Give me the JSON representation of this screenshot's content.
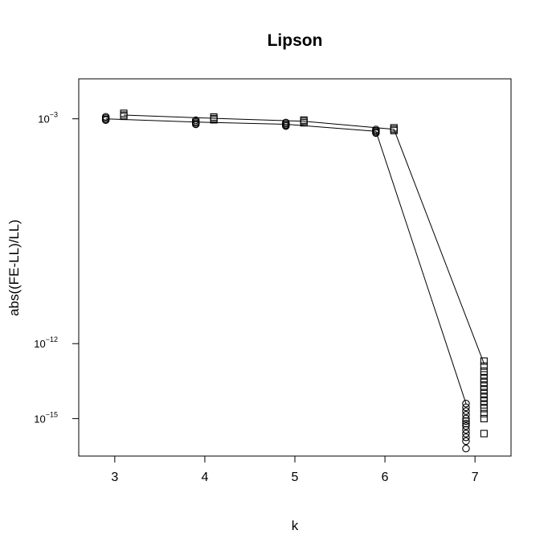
{
  "chart_data": {
    "type": "scatter",
    "title": "Lipson",
    "xlabel": "k",
    "ylabel": "abs((FE-LL)/LL)",
    "x_ticks": [
      "3",
      "4",
      "5",
      "6",
      "7"
    ],
    "y_ticks": [
      {
        "exp": -3,
        "base": "10",
        "sup": "−3"
      },
      {
        "exp": -12,
        "base": "10",
        "sup": "−12"
      },
      {
        "exp": -15,
        "base": "10",
        "sup": "−15"
      }
    ],
    "xlim": [
      2.6,
      7.4
    ],
    "ylim_log10": [
      -16.5,
      -1.4
    ],
    "y_scale": "log10",
    "grid": false,
    "legend": "none",
    "series": [
      {
        "marker": "circle",
        "line_x": [
          2.9,
          3.9,
          4.9,
          5.9,
          6.9
        ],
        "line_log10y": [
          -3.0,
          -3.13,
          -3.22,
          -3.5,
          -14.4
        ],
        "points": [
          {
            "x": 2.9,
            "log10y": [
              -2.92,
              -2.97,
              -3.02,
              -3.05
            ]
          },
          {
            "x": 3.9,
            "log10y": [
              -3.06,
              -3.12,
              -3.17,
              -3.22
            ]
          },
          {
            "x": 4.9,
            "log10y": [
              -3.15,
              -3.2,
              -3.25,
              -3.29
            ]
          },
          {
            "x": 5.9,
            "log10y": [
              -3.43,
              -3.48,
              -3.53,
              -3.57
            ]
          },
          {
            "x": 6.9,
            "log10y": [
              -14.4,
              -14.55,
              -14.7,
              -14.85,
              -15.0,
              -15.1,
              -15.2,
              -15.3,
              -15.45,
              -15.6,
              -15.75,
              -15.9,
              -16.2
            ]
          }
        ]
      },
      {
        "marker": "square",
        "line_x": [
          3.1,
          4.1,
          5.1,
          6.1,
          7.1
        ],
        "line_log10y": [
          -2.85,
          -2.98,
          -3.1,
          -3.42,
          -12.8
        ],
        "points": [
          {
            "x": 3.1,
            "log10y": [
              -2.78,
              -2.85,
              -2.9
            ]
          },
          {
            "x": 4.1,
            "log10y": [
              -2.93,
              -2.99,
              -3.04
            ]
          },
          {
            "x": 5.1,
            "log10y": [
              -3.05,
              -3.1,
              -3.16
            ]
          },
          {
            "x": 6.1,
            "log10y": [
              -3.36,
              -3.42,
              -3.47
            ]
          },
          {
            "x": 7.1,
            "log10y": [
              -12.7,
              -12.9,
              -13.1,
              -13.25,
              -13.4,
              -13.55,
              -13.7,
              -13.85,
              -14.0,
              -14.15,
              -14.3,
              -14.45,
              -14.6,
              -14.8,
              -15.0,
              -15.6
            ]
          }
        ]
      }
    ]
  }
}
